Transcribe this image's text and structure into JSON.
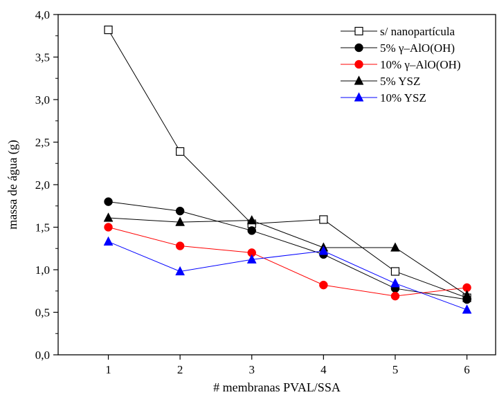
{
  "chart_data": {
    "type": "line",
    "xlabel": "# membranas PVAL/SSA",
    "ylabel": "massa de água (g)",
    "xlim": [
      0.3,
      6.4
    ],
    "ylim": [
      0.0,
      4.0
    ],
    "x": [
      1,
      2,
      3,
      4,
      5,
      6
    ],
    "x_tick_labels": [
      "1",
      "2",
      "3",
      "4",
      "5",
      "6"
    ],
    "y_ticks": [
      0.0,
      0.5,
      1.0,
      1.5,
      2.0,
      2.5,
      3.0,
      3.5,
      4.0
    ],
    "y_tick_labels": [
      "0,0",
      "0,5",
      "1,0",
      "1,5",
      "2,0",
      "2,5",
      "3,0",
      "3,5",
      "4,0"
    ],
    "grid": false,
    "legend_position": "top-right",
    "series": [
      {
        "name": "s/ nanopartícula",
        "marker": "open-square",
        "color": "#000000",
        "values": [
          3.82,
          2.39,
          1.54,
          1.59,
          0.98,
          0.67
        ]
      },
      {
        "name": "5% γ–AlO(OH)",
        "marker": "circle",
        "color": "#000000",
        "values": [
          1.8,
          1.69,
          1.46,
          1.18,
          0.78,
          0.65
        ]
      },
      {
        "name": "10% γ–AlO(OH)",
        "marker": "circle",
        "color": "#ff0000",
        "values": [
          1.5,
          1.28,
          1.2,
          0.82,
          0.69,
          0.79
        ]
      },
      {
        "name": "5% YSZ",
        "marker": "triangle",
        "color": "#000000",
        "values": [
          1.61,
          1.56,
          1.58,
          1.26,
          1.26,
          0.7
        ]
      },
      {
        "name": "10% YSZ",
        "marker": "triangle",
        "color": "#0000ff",
        "values": [
          1.33,
          0.98,
          1.12,
          1.22,
          0.84,
          0.53
        ]
      }
    ]
  }
}
